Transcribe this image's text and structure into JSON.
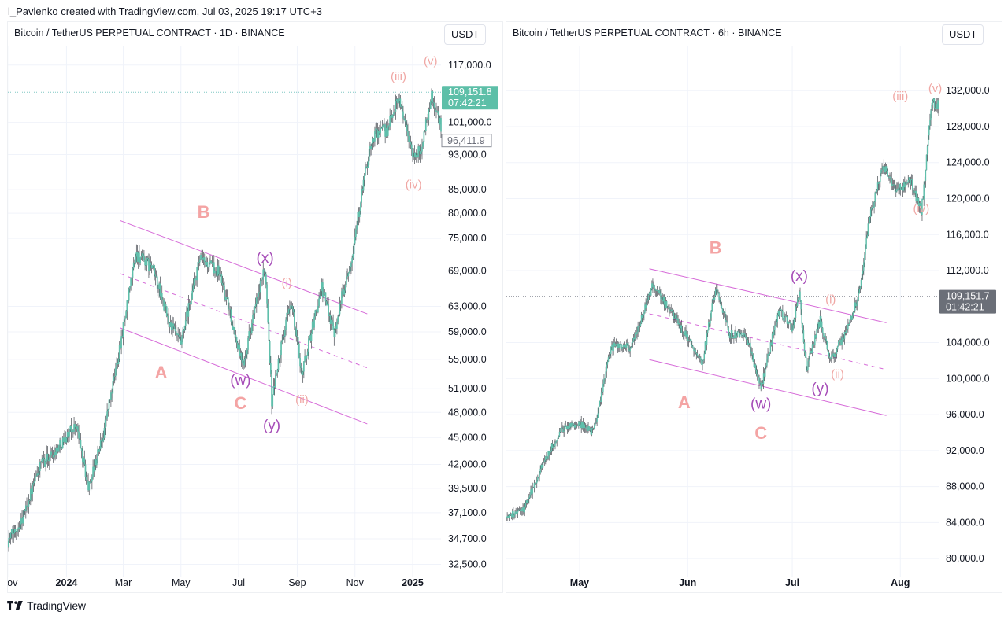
{
  "header": {
    "attribution": "l_Pavlenko created with TradingView.com, Jul 03, 2025 19:17 UTC+3"
  },
  "footer": {
    "brand": "TradingView"
  },
  "colors": {
    "candle": "#5fbfab",
    "wick": "#444950",
    "channel": "#d66ad8",
    "abc_label": "#f4a4a4",
    "wxy_label": "#a64db8",
    "subwave_label": "#f0a7a4",
    "price_line": "#7fc7c3",
    "price_badge_left": "#5dbfa8",
    "price_badge_right": "#6b6f78"
  },
  "charts": [
    {
      "symbol": "Bitcoin / TetherUS PERPETUAL CONTRACT · 1D · BINANCE",
      "currency": "USDT",
      "price_badge": {
        "price": "109,151.8",
        "countdown": "07:42:21"
      },
      "secondary_badge": "96,411.9"
    },
    {
      "symbol": "Bitcoin / TetherUS PERPETUAL CONTRACT · 6h · BINANCE",
      "currency": "USDT",
      "price_badge": {
        "price": "109,151.7",
        "countdown": "01:42:21"
      }
    }
  ],
  "chart_data": [
    {
      "type": "candlestick",
      "symbol": "BTCUSDT.P",
      "timeframe": "1D",
      "scale": "log",
      "ylim": [
        31500,
        123000
      ],
      "y_ticks": [
        117000,
        101000,
        93000,
        85000,
        80000,
        75000,
        69000,
        63000,
        59000,
        55000,
        51000,
        48000,
        45000,
        42000,
        39500,
        37100,
        34700,
        32500
      ],
      "y_tick_labels": [
        "117,000.0",
        "101,000.0",
        "93,000.0",
        "85,000.0",
        "80,000.0",
        "75,000.0",
        "69,000.0",
        "63,000.0",
        "59,000.0",
        "55,000.0",
        "51,000.0",
        "48,000.0",
        "45,000.0",
        "42,000.0",
        "39,500.0",
        "37,100.0",
        "34,700.0",
        "32,500.0"
      ],
      "x_tick_labels": [
        "Nov",
        "2024",
        "Mar",
        "May",
        "Jul",
        "Sep",
        "Nov",
        "2025"
      ],
      "x_tick_dates": [
        "2023-11-01",
        "2024-01-01",
        "2024-03-01",
        "2024-05-01",
        "2024-07-01",
        "2024-09-01",
        "2024-11-01",
        "2025-01-01"
      ],
      "x_range": [
        "2023-10-31",
        "2025-01-31"
      ],
      "last_price": 109151.8,
      "price_path": [
        [
          "2023-10-31",
          34500
        ],
        [
          "2023-11-15",
          36500
        ],
        [
          "2023-12-05",
          42000
        ],
        [
          "2023-12-20",
          43500
        ],
        [
          "2024-01-11",
          46500
        ],
        [
          "2024-01-24",
          39500
        ],
        [
          "2024-02-08",
          45000
        ],
        [
          "2024-02-20",
          52000
        ],
        [
          "2024-03-05",
          63000
        ],
        [
          "2024-03-14",
          72000
        ],
        [
          "2024-04-01",
          69500
        ],
        [
          "2024-04-17",
          61000
        ],
        [
          "2024-05-01",
          57000
        ],
        [
          "2024-05-21",
          71000
        ],
        [
          "2024-06-10",
          69000
        ],
        [
          "2024-07-05",
          54000
        ],
        [
          "2024-07-29",
          69500
        ],
        [
          "2024-08-05",
          49500
        ],
        [
          "2024-08-25",
          64000
        ],
        [
          "2024-09-06",
          53000
        ],
        [
          "2024-09-27",
          66000
        ],
        [
          "2024-10-10",
          59000
        ],
        [
          "2024-10-29",
          72000
        ],
        [
          "2024-11-13",
          90000
        ],
        [
          "2024-11-22",
          98500
        ],
        [
          "2024-12-05",
          99000
        ],
        [
          "2024-12-17",
          108000
        ],
        [
          "2025-01-02",
          92000
        ],
        [
          "2025-01-10",
          94500
        ],
        [
          "2025-01-21",
          108000
        ],
        [
          "2025-01-31",
          100000
        ]
      ],
      "annotations": [
        {
          "text": "A",
          "date": "2024-04-10",
          "price": 53000,
          "style": "abc"
        },
        {
          "text": "B",
          "date": "2024-05-25",
          "price": 80000,
          "style": "abc"
        },
        {
          "text": "C",
          "date": "2024-07-03",
          "price": 49000,
          "style": "abc"
        },
        {
          "text": "(w)",
          "date": "2024-07-03",
          "price": 52000,
          "style": "wxy"
        },
        {
          "text": "(x)",
          "date": "2024-07-29",
          "price": 71200,
          "style": "wxy"
        },
        {
          "text": "(y)",
          "date": "2024-08-05",
          "price": 46300,
          "style": "wxy"
        },
        {
          "text": "(i)",
          "date": "2024-08-21",
          "price": 66800,
          "style": "sub"
        },
        {
          "text": "(ii)",
          "date": "2024-09-06",
          "price": 49500,
          "style": "sub"
        },
        {
          "text": "(iii)",
          "date": "2024-12-17",
          "price": 113500,
          "style": "sub"
        },
        {
          "text": "(iv)",
          "date": "2025-01-02",
          "price": 86000,
          "style": "sub"
        },
        {
          "text": "(v)",
          "date": "2025-01-20",
          "price": 118000,
          "style": "sub"
        }
      ],
      "channel_lines": [
        {
          "from": [
            "2024-02-27",
            78500
          ],
          "to": [
            "2024-11-14",
            61800
          ],
          "style": "solid"
        },
        {
          "from": [
            "2024-02-27",
            59600
          ],
          "to": [
            "2024-11-14",
            46600
          ],
          "style": "solid"
        },
        {
          "from": [
            "2024-02-27",
            68500
          ],
          "to": [
            "2024-11-14",
            53800
          ],
          "style": "dashed"
        }
      ]
    },
    {
      "type": "candlestick",
      "symbol": "BTCUSDT.P",
      "timeframe": "6h",
      "scale": "linear",
      "ylim": [
        78000,
        137000
      ],
      "y_ticks": [
        132000,
        128000,
        124000,
        120000,
        116000,
        112000,
        104000,
        100000,
        96000,
        92000,
        88000,
        84000,
        80000
      ],
      "y_tick_labels": [
        "132,000.0",
        "128,000.0",
        "124,000.0",
        "120,000.0",
        "116,000.0",
        "112,000.0",
        "104,000.0",
        "100,000.0",
        "96,000.0",
        "92,000.0",
        "88,000.0",
        "84,000.0",
        "80,000.0"
      ],
      "x_tick_labels": [
        "May",
        "Jun",
        "Jul",
        "Aug"
      ],
      "x_tick_dates": [
        "2025-05-01",
        "2025-06-01",
        "2025-07-01",
        "2025-08-01"
      ],
      "x_range": [
        "2025-04-10",
        "2025-08-12"
      ],
      "last_price": 109151.7,
      "price_path": [
        [
          "2025-04-10",
          84500
        ],
        [
          "2025-04-15",
          85500
        ],
        [
          "2025-04-21",
          91000
        ],
        [
          "2025-04-26",
          94500
        ],
        [
          "2025-05-01",
          95000
        ],
        [
          "2025-05-05",
          94000
        ],
        [
          "2025-05-10",
          103500
        ],
        [
          "2025-05-16",
          103500
        ],
        [
          "2025-05-22",
          110500
        ],
        [
          "2025-05-26",
          108000
        ],
        [
          "2025-06-01",
          104500
        ],
        [
          "2025-06-05",
          101500
        ],
        [
          "2025-06-09",
          110000
        ],
        [
          "2025-06-13",
          105000
        ],
        [
          "2025-06-18",
          104500
        ],
        [
          "2025-06-22",
          99000
        ],
        [
          "2025-06-27",
          107500
        ],
        [
          "2025-07-01",
          105500
        ],
        [
          "2025-07-03",
          109500
        ],
        [
          "2025-07-05",
          101000
        ],
        [
          "2025-07-09",
          106500
        ],
        [
          "2025-07-12",
          102000
        ],
        [
          "2025-07-16",
          105000
        ],
        [
          "2025-07-20",
          109000
        ],
        [
          "2025-07-23",
          117500
        ],
        [
          "2025-07-27",
          123500
        ],
        [
          "2025-07-31",
          121000
        ],
        [
          "2025-08-04",
          122000
        ],
        [
          "2025-08-07",
          118500
        ],
        [
          "2025-08-10",
          130500
        ]
      ],
      "annotations": [
        {
          "text": "A",
          "date": "2025-05-31",
          "price": 97200,
          "style": "abc"
        },
        {
          "text": "B",
          "date": "2025-06-09",
          "price": 114400,
          "style": "abc"
        },
        {
          "text": "C",
          "date": "2025-06-22",
          "price": 93800,
          "style": "abc"
        },
        {
          "text": "(w)",
          "date": "2025-06-22",
          "price": 97100,
          "style": "wxy"
        },
        {
          "text": "(x)",
          "date": "2025-07-03",
          "price": 111300,
          "style": "wxy"
        },
        {
          "text": "(y)",
          "date": "2025-07-09",
          "price": 98800,
          "style": "wxy"
        },
        {
          "text": "(i)",
          "date": "2025-07-12",
          "price": 108700,
          "style": "sub"
        },
        {
          "text": "(ii)",
          "date": "2025-07-14",
          "price": 100400,
          "style": "sub"
        },
        {
          "text": "(iii)",
          "date": "2025-08-01",
          "price": 131300,
          "style": "sub"
        },
        {
          "text": "(iv)",
          "date": "2025-08-07",
          "price": 118800,
          "style": "sub"
        },
        {
          "text": "(v)",
          "date": "2025-08-11",
          "price": 132200,
          "style": "sub"
        }
      ],
      "channel_lines": [
        {
          "from": [
            "2025-05-21",
            112200
          ],
          "to": [
            "2025-07-28",
            106200
          ],
          "style": "solid"
        },
        {
          "from": [
            "2025-05-21",
            102100
          ],
          "to": [
            "2025-07-28",
            95900
          ],
          "style": "solid"
        },
        {
          "from": [
            "2025-05-21",
            107200
          ],
          "to": [
            "2025-07-28",
            101000
          ],
          "style": "dashed"
        }
      ]
    }
  ]
}
